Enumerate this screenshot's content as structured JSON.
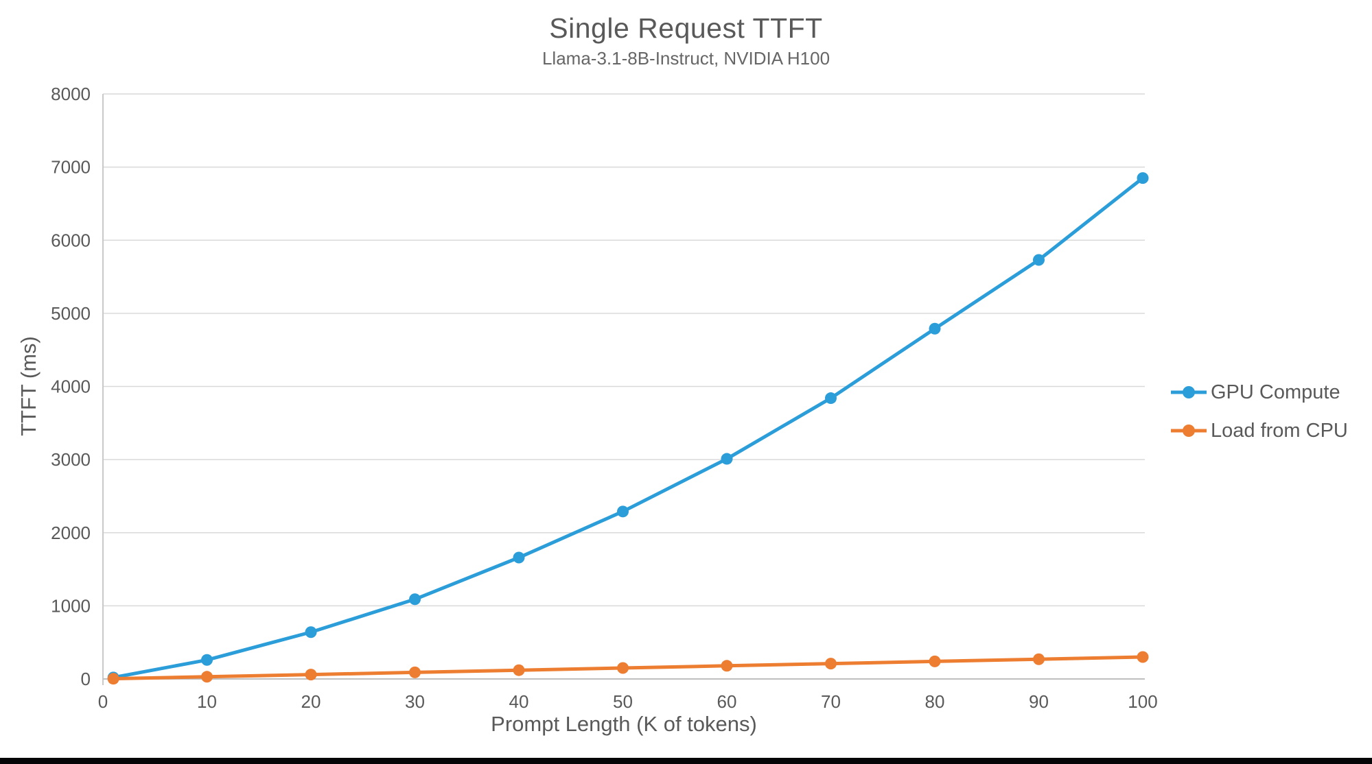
{
  "chart": {
    "title": "Single Request TTFT",
    "subtitle": "Llama-3.1-8B-Instruct, NVIDIA H100",
    "x_axis_label": "Prompt Length (K of tokens)",
    "y_axis_label": "TTFT (ms)"
  },
  "chart_data": {
    "type": "line",
    "title": "Single Request TTFT",
    "subtitle": "Llama-3.1-8B-Instruct, NVIDIA H100",
    "xlabel": "Prompt Length (K of tokens)",
    "ylabel": "TTFT (ms)",
    "x": [
      1,
      10,
      20,
      30,
      40,
      50,
      60,
      70,
      80,
      90,
      100
    ],
    "series": [
      {
        "name": "GPU Compute",
        "color": "#2B9DD8",
        "values": [
          20,
          260,
          640,
          1090,
          1660,
          2290,
          3010,
          3840,
          4790,
          5730,
          6850
        ]
      },
      {
        "name": "Load from CPU",
        "color": "#ED7D31",
        "values": [
          3,
          30,
          60,
          90,
          120,
          150,
          180,
          210,
          240,
          270,
          300
        ]
      }
    ],
    "xlim": [
      0,
      100
    ],
    "ylim": [
      0,
      8000
    ],
    "xticks": [
      0,
      10,
      20,
      30,
      40,
      50,
      60,
      70,
      80,
      90,
      100
    ],
    "yticks": [
      0,
      1000,
      2000,
      3000,
      4000,
      5000,
      6000,
      7000,
      8000
    ],
    "grid": "horizontal",
    "legend_position": "right",
    "marker": "circle"
  },
  "colors": {
    "text": "#595959",
    "tick_text": "#595959",
    "gridline": "#D9D9D9",
    "axis_line": "#BFBFBF",
    "bottom_bar": "#050508"
  }
}
